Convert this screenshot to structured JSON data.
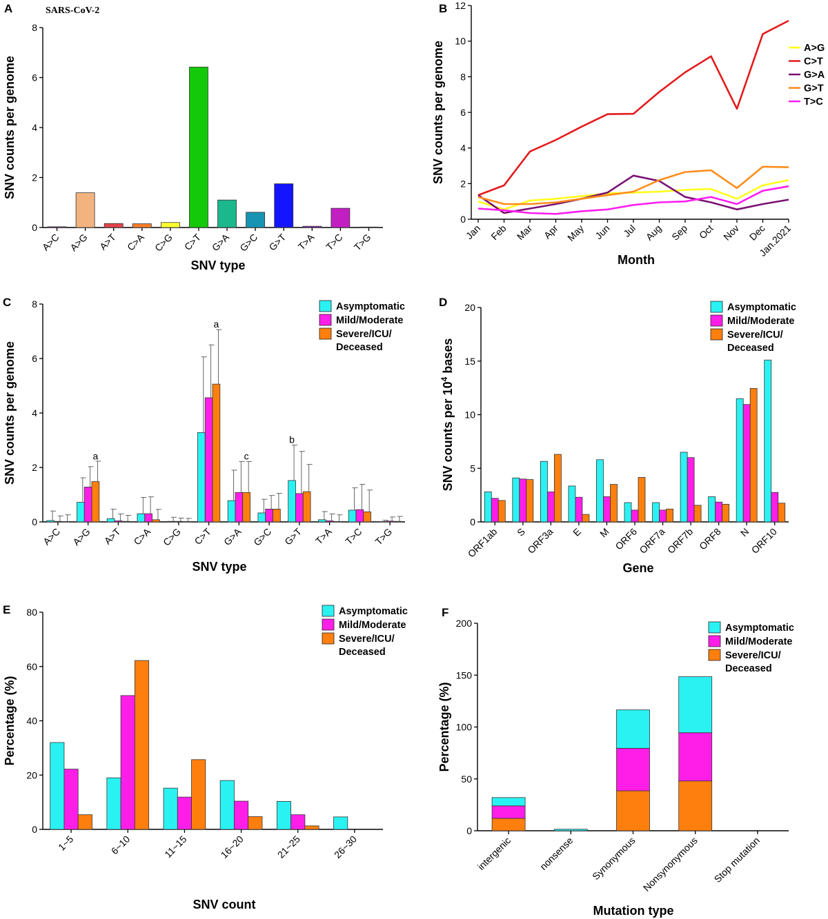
{
  "colors": {
    "asymptomatic": "#2af2f2",
    "mild": "#ff1ee8",
    "severe": "#ff7f0e",
    "axis": "#000000"
  },
  "chart_data": [
    {
      "id": "A",
      "panel_label": "A",
      "type": "bar",
      "title": "SARS-CoV-2",
      "xlabel": "SNV type",
      "ylabel": "SNV counts per genome",
      "ylim": [
        0,
        8
      ],
      "yticks": [
        0,
        2,
        4,
        6,
        8
      ],
      "categories": [
        "A>C",
        "A>G",
        "A>T",
        "C>A",
        "C>G",
        "C>T",
        "G>A",
        "G>C",
        "G>T",
        "T>A",
        "T>C",
        "T>G"
      ],
      "values": [
        0.03,
        1.39,
        0.16,
        0.15,
        0.2,
        6.42,
        1.1,
        0.61,
        1.75,
        0.05,
        0.77,
        0.02
      ],
      "bar_colors": [
        "#7b2fb0",
        "#f2b37f",
        "#e8434a",
        "#ff7f2a",
        "#ffff30",
        "#14c80a",
        "#1bb88c",
        "#1794b4",
        "#1414ff",
        "#9933cc",
        "#c21fc2",
        "#555555"
      ]
    },
    {
      "id": "B",
      "panel_label": "B",
      "type": "line",
      "xlabel": "Month",
      "ylabel": "SNV counts per genome",
      "ylim": [
        0,
        12
      ],
      "yticks": [
        0,
        2,
        4,
        6,
        8,
        10,
        12
      ],
      "categories": [
        "Jan",
        "Feb",
        "Mar",
        "Apr",
        "May",
        "Jun",
        "Jul",
        "Aug",
        "Sep",
        "Oct",
        "Nov",
        "Dec",
        "Jan.2021"
      ],
      "legend_position": "right",
      "series": [
        {
          "name": "A>G",
          "color": "#ffff1a",
          "values": [
            1.0,
            0.55,
            1.05,
            1.15,
            1.3,
            1.45,
            1.5,
            1.55,
            1.65,
            1.7,
            1.15,
            1.9,
            2.2
          ]
        },
        {
          "name": "C>T",
          "color": "#e41a1c",
          "values": [
            1.35,
            1.9,
            3.8,
            4.45,
            5.2,
            5.9,
            5.92,
            7.15,
            8.25,
            9.15,
            6.2,
            10.4,
            11.15
          ]
        },
        {
          "name": "G>A",
          "color": "#7a1173",
          "values": [
            1.35,
            0.35,
            0.6,
            0.85,
            1.15,
            1.5,
            2.45,
            2.15,
            1.25,
            0.95,
            0.55,
            0.85,
            1.1
          ]
        },
        {
          "name": "G>T",
          "color": "#ff8c1a",
          "values": [
            1.25,
            0.85,
            0.85,
            0.95,
            1.15,
            1.35,
            1.55,
            2.2,
            2.65,
            2.75,
            1.75,
            2.95,
            2.92
          ]
        },
        {
          "name": "T>C",
          "color": "#ff1ef0",
          "values": [
            0.6,
            0.5,
            0.35,
            0.3,
            0.45,
            0.55,
            0.8,
            0.95,
            1.0,
            1.25,
            0.85,
            1.6,
            1.85
          ]
        }
      ]
    },
    {
      "id": "C",
      "panel_label": "C",
      "type": "bar",
      "xlabel": "SNV type",
      "ylabel": "SNV counts per genome",
      "ylim": [
        0,
        8
      ],
      "yticks": [
        0,
        2,
        4,
        6,
        8
      ],
      "categories": [
        "A>C",
        "A>G",
        "A>T",
        "C>A",
        "C>G",
        "C>T",
        "G>A",
        "G>C",
        "G>T",
        "T>A",
        "T>C",
        "T>G"
      ],
      "legend": [
        "Asymptomatic",
        "Mild/Moderate",
        "Severe/ICU/\nDeceased"
      ],
      "legend_position": "top-right",
      "series": [
        {
          "name": "Asymptomatic",
          "values": [
            0.05,
            0.72,
            0.12,
            0.3,
            0.02,
            3.28,
            0.78,
            0.33,
            1.52,
            0.08,
            0.43,
            0.01
          ],
          "errors": [
            0.35,
            0.9,
            0.35,
            0.6,
            0.15,
            2.78,
            1.12,
            0.5,
            1.3,
            0.3,
            0.82,
            0.05
          ]
        },
        {
          "name": "Mild/Moderate",
          "values": [
            0.02,
            1.28,
            0.04,
            0.3,
            0.02,
            4.56,
            1.08,
            0.47,
            1.04,
            0.04,
            0.45,
            0.03
          ],
          "errors": [
            0.2,
            0.75,
            0.25,
            0.62,
            0.12,
            1.94,
            1.14,
            0.5,
            1.55,
            0.25,
            0.93,
            0.15
          ]
        },
        {
          "name": "Severe/ICU/Deceased",
          "values": [
            0.01,
            1.48,
            0.02,
            0.08,
            0.01,
            5.06,
            1.08,
            0.47,
            1.11,
            0.01,
            0.37,
            0.02
          ],
          "errors": [
            0.25,
            0.75,
            0.22,
            0.38,
            0.12,
            2.0,
            1.14,
            0.58,
            1.0,
            0.25,
            0.8,
            0.18
          ]
        }
      ],
      "annotations": [
        {
          "text": "a",
          "category": "A>G",
          "series": "Severe/ICU/Deceased",
          "value": 2.22
        },
        {
          "text": "a",
          "category": "C>T",
          "series": "Severe/ICU/Deceased",
          "value": 7.06
        },
        {
          "text": "c",
          "category": "G>A",
          "series": "Severe/ICU/Deceased",
          "value": 2.22
        },
        {
          "text": "b",
          "category": "G>T",
          "series": "Asymptomatic",
          "value": 2.82
        }
      ]
    },
    {
      "id": "D",
      "panel_label": "D",
      "type": "bar",
      "xlabel": "Gene",
      "ylabel": "SNV counts per 10",
      "ylabel_sup": "4",
      "ylabel_tail": " bases",
      "ylim": [
        0,
        20
      ],
      "yticks": [
        0,
        5,
        10,
        15,
        20
      ],
      "categories": [
        "ORF1ab",
        "S",
        "ORF3a",
        "E",
        "M",
        "ORF6",
        "ORF7a",
        "ORF7b",
        "ORF8",
        "N",
        "ORF10"
      ],
      "legend": [
        "Asymptomatic",
        "Mild/Moderate",
        "Severe/ICU/\nDeceased"
      ],
      "legend_position": "top-right",
      "series": [
        {
          "name": "Asymptomatic",
          "values": [
            2.8,
            4.1,
            5.65,
            3.35,
            5.8,
            1.8,
            1.8,
            6.5,
            2.35,
            11.5,
            15.1
          ]
        },
        {
          "name": "Mild/Moderate",
          "values": [
            2.2,
            4.0,
            2.8,
            2.3,
            2.35,
            1.1,
            1.1,
            6.0,
            1.85,
            10.95,
            2.75
          ]
        },
        {
          "name": "Severe/ICU/Deceased",
          "values": [
            2.0,
            3.95,
            6.3,
            0.7,
            3.5,
            4.15,
            1.2,
            1.55,
            1.65,
            12.45,
            1.75
          ]
        }
      ]
    },
    {
      "id": "E",
      "panel_label": "E",
      "type": "bar",
      "xlabel": "SNV count",
      "ylabel": "Percentage (%)",
      "ylim": [
        0,
        80
      ],
      "yticks": [
        0,
        20,
        40,
        60,
        80
      ],
      "categories": [
        "1~5",
        "6~10",
        "11~15",
        "16~20",
        "21~25",
        "26~30"
      ],
      "legend": [
        "Asymptomatic",
        "Mild/Moderate",
        "Severe/ICU/\nDeceased"
      ],
      "legend_position": "top-right",
      "series": [
        {
          "name": "Asymptomatic",
          "values": [
            32.0,
            19.0,
            15.2,
            18.0,
            10.3,
            4.6
          ]
        },
        {
          "name": "Mild/Moderate",
          "values": [
            22.2,
            49.3,
            11.9,
            10.4,
            5.4,
            0
          ]
        },
        {
          "name": "Severe/ICU/Deceased",
          "values": [
            5.4,
            62.2,
            25.7,
            4.7,
            1.3,
            0
          ]
        }
      ]
    },
    {
      "id": "F",
      "panel_label": "F",
      "type": "bar",
      "stacked": true,
      "xlabel": "Mutation type",
      "ylabel": "Percentage (%)",
      "ylim": [
        0,
        200
      ],
      "yticks": [
        0,
        50,
        100,
        150,
        200
      ],
      "categories": [
        "intergenic",
        "nonsense",
        "Synonymous",
        "Nonsynonymous",
        "Stop mutation"
      ],
      "legend": [
        "Asymptomatic",
        "Mild/Moderate",
        "Severe/ICU/\nDeceased"
      ],
      "legend_position": "top-right",
      "series": [
        {
          "name": "Severe/ICU/Deceased",
          "values": [
            12,
            0,
            38.5,
            48,
            0
          ]
        },
        {
          "name": "Mild/Moderate",
          "values": [
            12,
            0,
            41,
            46.5,
            0
          ]
        },
        {
          "name": "Asymptomatic",
          "values": [
            8,
            1.5,
            37,
            54,
            0
          ]
        }
      ]
    }
  ]
}
